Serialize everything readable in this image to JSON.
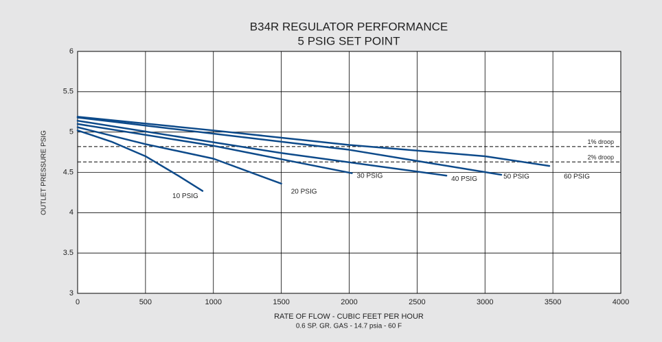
{
  "chart_data": {
    "type": "line",
    "title": "B34R REGULATOR PERFORMANCE",
    "subtitle": "5 PSIG SET POINT",
    "x_label": "RATE OF FLOW - CUBIC FEET PER HOUR",
    "x_sublabel": "0.6 SP. GR. GAS - 14.7 psia - 60 F",
    "y_label": "OUTLET PRESSURE PSIG",
    "xlim": [
      0,
      4000
    ],
    "xticks": [
      0,
      500,
      1000,
      1500,
      2000,
      2500,
      3000,
      3500,
      4000
    ],
    "ylim": [
      3,
      6
    ],
    "yticks": [
      3,
      3.5,
      4,
      4.5,
      5,
      5.5,
      6
    ],
    "grid": true,
    "reference_lines": [
      {
        "label": "1% droop",
        "value": 4.82
      },
      {
        "label": "2% droop",
        "value": 4.63
      }
    ],
    "series": [
      {
        "name": "10 PSIG",
        "color": "#0d4a8a",
        "x": [
          0,
          250,
          500,
          750,
          920
        ],
        "values": [
          5.02,
          4.88,
          4.7,
          4.45,
          4.27
        ]
      },
      {
        "name": "20 PSIG",
        "color": "#0d4a8a",
        "x": [
          0,
          500,
          1000,
          1500
        ],
        "values": [
          5.06,
          4.85,
          4.67,
          4.36
        ]
      },
      {
        "name": "30 PSIG",
        "color": "#0d4a8a",
        "x": [
          0,
          1000,
          2020
        ],
        "values": [
          5.1,
          4.83,
          4.49
        ]
      },
      {
        "name": "40 PSIG",
        "color": "#0d4a8a",
        "x": [
          0,
          1500,
          2716
        ],
        "values": [
          5.14,
          4.74,
          4.46
        ]
      },
      {
        "name": "50 PSIG",
        "color": "#0d4a8a",
        "x": [
          0,
          2000,
          3120
        ],
        "values": [
          5.18,
          4.78,
          4.47
        ]
      },
      {
        "name": "60 PSIG",
        "color": "#0d4a8a",
        "x": [
          0,
          1000,
          2000,
          3000,
          3474
        ],
        "values": [
          5.19,
          5.02,
          4.84,
          4.7,
          4.58
        ]
      }
    ]
  }
}
